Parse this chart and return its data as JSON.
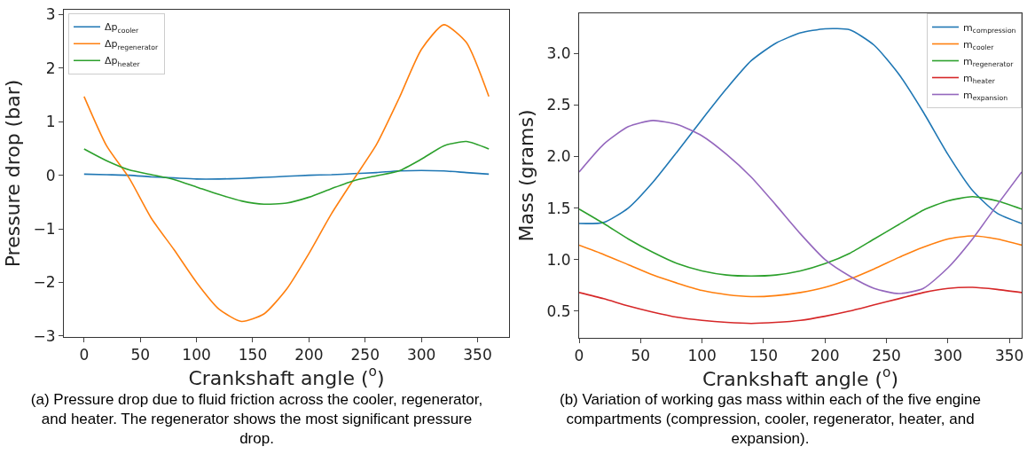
{
  "chart_data": [
    {
      "type": "line",
      "xlabel": "Crankshaft angle ($^{o}$)",
      "ylabel": "Pressure drop (bar)",
      "x": [
        0,
        20,
        40,
        60,
        80,
        100,
        120,
        140,
        160,
        180,
        200,
        220,
        240,
        260,
        280,
        300,
        320,
        340,
        360
      ],
      "xlim": [
        -18,
        378
      ],
      "xticks": [
        0,
        50,
        100,
        150,
        200,
        250,
        300,
        350
      ],
      "ylim": [
        -3.02,
        3.09
      ],
      "yticks": [
        {
          "value": -3,
          "label": "−3"
        },
        {
          "value": -2,
          "label": "−2"
        },
        {
          "value": -1,
          "label": "−1"
        },
        0,
        1,
        2,
        3
      ],
      "grid": false,
      "legend": "top left",
      "annotations": [
        "(a) Pressure drop due to fluid friction across the cooler, regenerator, and heater. The regenerator shows the most significant pressure drop."
      ],
      "series": [
        {
          "name": "Δp$_{cooler}$",
          "color": "#1f77b4",
          "values": [
            0.02,
            0.01,
            0.0,
            -0.03,
            -0.05,
            -0.07,
            -0.07,
            -0.06,
            -0.04,
            -0.02,
            0.0,
            0.01,
            0.03,
            0.05,
            0.08,
            0.09,
            0.08,
            0.05,
            0.02
          ]
        },
        {
          "name": "Δp$_{regenerator}$",
          "color": "#ff7f0e",
          "values": [
            1.47,
            0.55,
            -0.05,
            -0.81,
            -1.39,
            -2.0,
            -2.5,
            -2.73,
            -2.59,
            -2.13,
            -1.46,
            -0.72,
            -0.07,
            0.57,
            1.43,
            2.35,
            2.81,
            2.48,
            1.47
          ]
        },
        {
          "name": "Δp$_{heater}$",
          "color": "#2ca02c",
          "values": [
            0.49,
            0.27,
            0.1,
            0.01,
            -0.08,
            -0.22,
            -0.36,
            -0.48,
            -0.54,
            -0.52,
            -0.41,
            -0.25,
            -0.1,
            -0.01,
            0.08,
            0.3,
            0.55,
            0.63,
            0.49
          ]
        }
      ]
    },
    {
      "type": "line",
      "xlabel": "Crankshaft angle ($^{o}$)",
      "ylabel": "Mass (grams)",
      "x": [
        0,
        20,
        40,
        60,
        80,
        100,
        120,
        140,
        160,
        180,
        200,
        220,
        240,
        260,
        280,
        300,
        320,
        340,
        360
      ],
      "xlim": [
        0,
        360
      ],
      "xticks": [
        0,
        50,
        100,
        150,
        200,
        250,
        300,
        350
      ],
      "ylim": [
        0.24,
        3.39
      ],
      "yticks": [
        {
          "value": 0.5,
          "label": "0.5"
        },
        {
          "value": 1,
          "label": "1.0"
        },
        {
          "value": 1.5,
          "label": "1.5"
        },
        {
          "value": 2,
          "label": "2.0"
        },
        {
          "value": 2.5,
          "label": "2.5"
        },
        {
          "value": 3,
          "label": "3.0"
        }
      ],
      "grid": false,
      "legend": "top right",
      "annotations": [
        "(b) Variation of working gas mass within each of the five engine compartments (compression, cooler, regenerator, heater, and expansion)."
      ],
      "series": [
        {
          "name": "m$_{compression}$",
          "color": "#1f77b4",
          "values": [
            1.35,
            1.36,
            1.5,
            1.75,
            2.05,
            2.36,
            2.66,
            2.93,
            3.1,
            3.2,
            3.24,
            3.23,
            3.08,
            2.8,
            2.43,
            2.02,
            1.67,
            1.45,
            1.35
          ]
        },
        {
          "name": "m$_{cooler}$",
          "color": "#ff7f0e",
          "values": [
            1.14,
            1.05,
            0.95,
            0.85,
            0.77,
            0.7,
            0.66,
            0.64,
            0.65,
            0.68,
            0.73,
            0.81,
            0.91,
            1.02,
            1.12,
            1.2,
            1.23,
            1.2,
            1.14
          ]
        },
        {
          "name": "m$_{regenerator}$",
          "color": "#2ca02c",
          "values": [
            1.49,
            1.35,
            1.2,
            1.07,
            0.96,
            0.89,
            0.85,
            0.84,
            0.85,
            0.89,
            0.96,
            1.06,
            1.2,
            1.34,
            1.48,
            1.57,
            1.61,
            1.57,
            1.49
          ]
        },
        {
          "name": "m$_{heater}$",
          "color": "#d62728",
          "values": [
            0.68,
            0.62,
            0.55,
            0.49,
            0.44,
            0.41,
            0.39,
            0.38,
            0.39,
            0.41,
            0.45,
            0.5,
            0.56,
            0.62,
            0.68,
            0.72,
            0.73,
            0.71,
            0.68
          ]
        },
        {
          "name": "m$_{expansion}$",
          "color": "#9467bd",
          "values": [
            1.85,
            2.12,
            2.29,
            2.35,
            2.31,
            2.2,
            2.02,
            1.8,
            1.53,
            1.25,
            1.0,
            0.84,
            0.72,
            0.67,
            0.72,
            0.92,
            1.2,
            1.53,
            1.85
          ]
        }
      ]
    }
  ]
}
